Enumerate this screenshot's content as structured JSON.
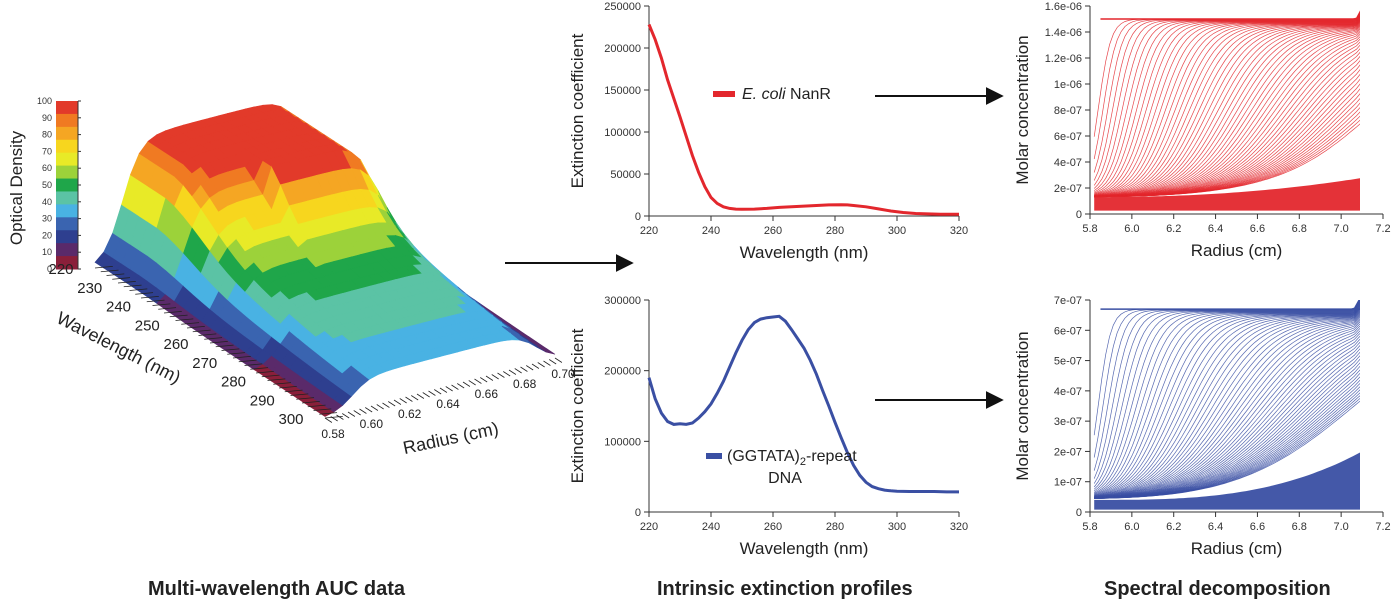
{
  "captions": {
    "left": "Multi-wavelength AUC data",
    "middle": "Intrinsic extinction profiles",
    "right": "Spectral decomposition"
  },
  "chart_data": [
    {
      "id": "surface",
      "type": "area",
      "description_type": "3d-surface",
      "zlabel": "Optical Density",
      "colorbar_ticks": [
        "100",
        "90",
        "80",
        "70",
        "60",
        "50",
        "40",
        "30",
        "20",
        "10",
        "0"
      ],
      "colorbar_colors": [
        "#e23a2a",
        "#f07a22",
        "#f5a623",
        "#f7d61e",
        "#e8ea27",
        "#9cd23a",
        "#1fa64a",
        "#5bc3a5",
        "#49b2e3",
        "#3a64b0",
        "#2e3f8f",
        "#5a2a6a",
        "#8a1f3a"
      ],
      "xlabel": "Wavelength (nm)",
      "x_ticks": [
        "220",
        "230",
        "240",
        "250",
        "260",
        "270",
        "280",
        "290",
        "300"
      ],
      "ylabel": "Radius (cm)",
      "y_ticks": [
        "0.58",
        "0.60",
        "0.62",
        "0.64",
        "0.66",
        "0.68",
        "0.70"
      ]
    },
    {
      "id": "nanr",
      "type": "line",
      "xlabel": "Wavelength (nm)",
      "ylabel": "Extinction coefficient",
      "xlim": [
        220,
        320
      ],
      "ylim": [
        0,
        250000
      ],
      "x_ticks": [
        220,
        240,
        260,
        280,
        300,
        320
      ],
      "y_ticks": [
        0,
        50000,
        100000,
        150000,
        200000,
        250000
      ],
      "legend_italic": "E. coli",
      "legend_text": "NanR",
      "color": "#e3272d",
      "x": [
        220,
        222,
        224,
        226,
        228,
        230,
        232,
        234,
        236,
        238,
        240,
        242,
        244,
        246,
        248,
        250,
        254,
        258,
        262,
        266,
        270,
        274,
        278,
        282,
        284,
        286,
        290,
        294,
        298,
        302,
        306,
        310,
        314,
        318,
        320
      ],
      "y": [
        228000,
        210000,
        188000,
        162000,
        140000,
        118000,
        95000,
        72000,
        52000,
        35000,
        22000,
        15000,
        11000,
        9000,
        8200,
        8000,
        8200,
        9000,
        10200,
        11000,
        11800,
        12500,
        13200,
        13500,
        13200,
        12500,
        11000,
        8500,
        6000,
        4200,
        3000,
        2500,
        2200,
        2000,
        2000
      ]
    },
    {
      "id": "dna",
      "type": "line",
      "xlabel": "Wavelength (nm)",
      "ylabel": "Extinction coefficient",
      "xlim": [
        220,
        320
      ],
      "ylim": [
        0,
        300000
      ],
      "x_ticks": [
        220,
        240,
        260,
        280,
        300,
        320
      ],
      "y_ticks": [
        0,
        100000,
        200000,
        300000
      ],
      "legend_pre": "(GGTATA)",
      "legend_sub": "2",
      "legend_post": "-repeat",
      "legend_line2": "DNA",
      "color": "#3a4fa3",
      "x": [
        220,
        222,
        224,
        226,
        228,
        230,
        232,
        234,
        236,
        238,
        240,
        242,
        244,
        246,
        248,
        250,
        252,
        254,
        256,
        258,
        260,
        262,
        264,
        266,
        268,
        270,
        272,
        274,
        276,
        278,
        280,
        282,
        284,
        286,
        288,
        290,
        292,
        294,
        296,
        298,
        300,
        304,
        308,
        312,
        316,
        320
      ],
      "y": [
        190000,
        160000,
        140000,
        128000,
        124000,
        125000,
        124000,
        126000,
        133000,
        142000,
        153000,
        168000,
        185000,
        205000,
        225000,
        243000,
        258000,
        268000,
        273000,
        275000,
        276000,
        277000,
        270000,
        258000,
        245000,
        232000,
        215000,
        195000,
        172000,
        150000,
        127000,
        105000,
        84000,
        66000,
        52000,
        42000,
        36000,
        33000,
        31000,
        30000,
        29500,
        29000,
        29000,
        29000,
        28500,
        28500
      ]
    },
    {
      "id": "nanr-decomp",
      "type": "line",
      "description_type": "scan-family",
      "xlabel": "Radius (cm)",
      "ylabel": "Molar concentration",
      "xlim": [
        5.8,
        7.2
      ],
      "ylim": [
        0,
        1.6e-06
      ],
      "x_ticks": [
        "5.8",
        "6.0",
        "6.2",
        "6.4",
        "6.6",
        "6.8",
        "7.0",
        "7.2"
      ],
      "y_ticks": [
        "0",
        "2e-07",
        "4e-07",
        "6e-07",
        "8e-07",
        "1e-06",
        "1.2e-06",
        "1.4e-06",
        "1.6e-06"
      ],
      "color": "#e3272d",
      "radius_range": [
        5.82,
        7.11
      ],
      "plateau_top": 1.5e-06,
      "baseline": [
        1.3e-07,
        2.8e-07
      ]
    },
    {
      "id": "dna-decomp",
      "type": "line",
      "description_type": "scan-family",
      "xlabel": "Radius (cm)",
      "ylabel": "Molar concentration",
      "xlim": [
        5.8,
        7.2
      ],
      "ylim": [
        0,
        7e-07
      ],
      "x_ticks": [
        "5.8",
        "6.0",
        "6.2",
        "6.4",
        "6.6",
        "6.8",
        "7.0",
        "7.2"
      ],
      "y_ticks": [
        "0",
        "1e-07",
        "2e-07",
        "3e-07",
        "4e-07",
        "5e-07",
        "6e-07",
        "7e-07"
      ],
      "color": "#3a4fa3",
      "radius_range": [
        5.82,
        7.1
      ],
      "plateau_top": 6.7e-07,
      "baseline": [
        4e-08,
        2e-07
      ]
    }
  ]
}
